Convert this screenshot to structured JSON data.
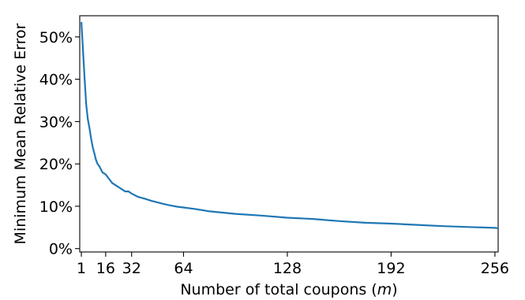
{
  "chart_data": {
    "type": "line",
    "xlabel_prefix": "Number of total coupons (",
    "xlabel_var": "m",
    "xlabel_suffix": ")",
    "ylabel": "Minimum Mean Relative Error",
    "xlim": [
      0,
      258
    ],
    "ylim": [
      -0.8,
      55
    ],
    "x_ticks": [
      {
        "value": 1,
        "label": "1"
      },
      {
        "value": 16,
        "label": "16"
      },
      {
        "value": 32,
        "label": "32"
      },
      {
        "value": 64,
        "label": "64"
      },
      {
        "value": 128,
        "label": "128"
      },
      {
        "value": 192,
        "label": "192"
      },
      {
        "value": 256,
        "label": "256"
      }
    ],
    "y_ticks": [
      {
        "value": 0,
        "label": "0%"
      },
      {
        "value": 10,
        "label": "10%"
      },
      {
        "value": 20,
        "label": "20%"
      },
      {
        "value": 30,
        "label": "30%"
      },
      {
        "value": 40,
        "label": "40%"
      },
      {
        "value": 50,
        "label": "50%"
      }
    ],
    "grid": false,
    "series_color": "#1f77b4",
    "x": [
      1,
      2,
      3,
      4,
      5,
      6,
      7,
      8,
      9,
      10,
      11,
      12,
      14,
      16,
      18,
      20,
      22,
      24,
      26,
      28,
      30,
      32,
      36,
      40,
      44,
      48,
      52,
      56,
      60,
      64,
      72,
      80,
      96,
      112,
      128,
      144,
      160,
      176,
      192,
      208,
      224,
      240,
      256,
      258
    ],
    "y": [
      53.5,
      47,
      40,
      34,
      30.5,
      28.5,
      26,
      24,
      22.5,
      21,
      20,
      19.5,
      18,
      17.5,
      16.5,
      15.5,
      15,
      14.5,
      14,
      13.5,
      13.5,
      13,
      12.2,
      11.8,
      11.3,
      10.9,
      10.5,
      10.2,
      9.9,
      9.7,
      9.3,
      8.8,
      8.2,
      7.8,
      7.3,
      7.0,
      6.5,
      6.1,
      5.9,
      5.6,
      5.3,
      5.1,
      4.9,
      4.8
    ]
  }
}
